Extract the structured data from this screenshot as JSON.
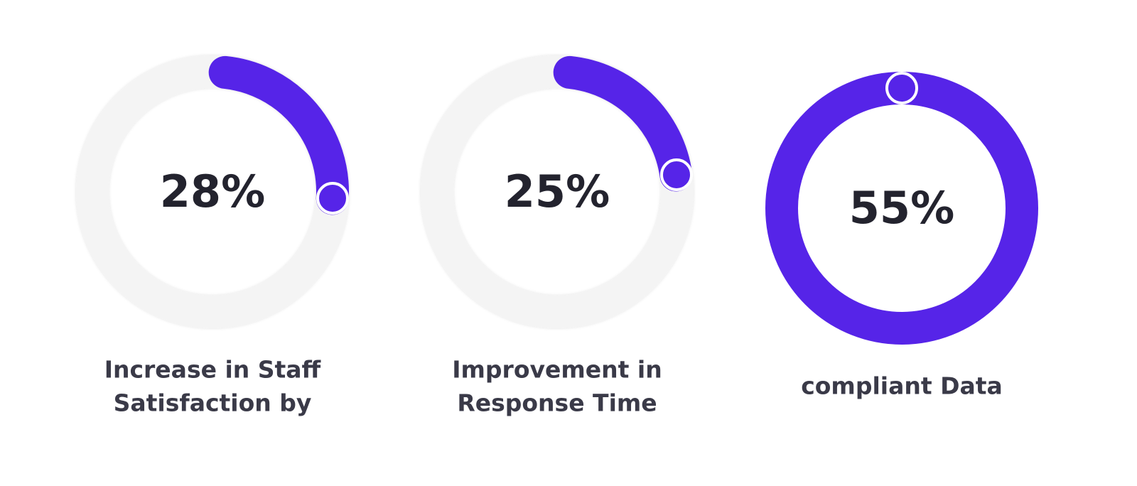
{
  "stats": [
    {
      "value": "28%",
      "label_lines": [
        "Increase in Staff",
        "Satisfaction by"
      ]
    },
    {
      "value": "25%",
      "label_lines": [
        "Improvement in",
        "Response Time"
      ]
    },
    {
      "value": "55%",
      "label_lines": [
        "compliant Data"
      ]
    }
  ]
}
